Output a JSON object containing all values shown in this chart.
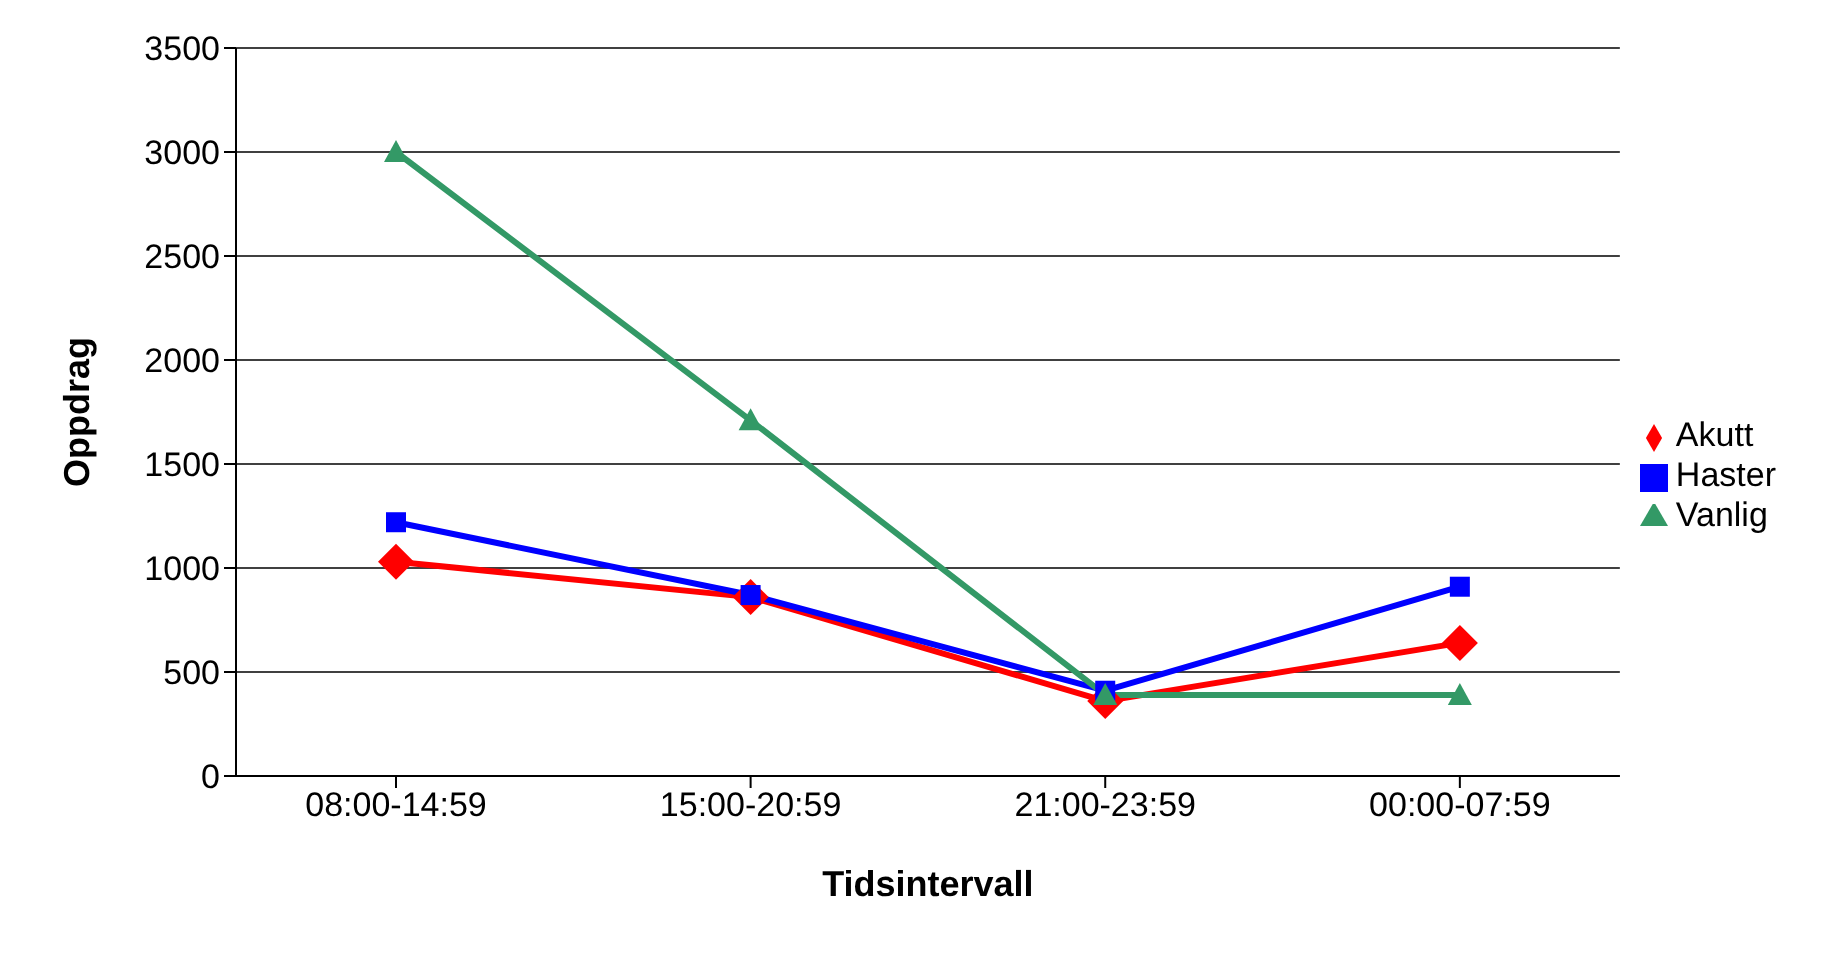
{
  "chart_data": {
    "type": "line",
    "xlabel": "Tidsintervall",
    "ylabel": "Oppdrag",
    "categories": [
      "08:00-14:59",
      "15:00-20:59",
      "21:00-23:59",
      "00:00-07:59"
    ],
    "series": [
      {
        "name": "Akutt",
        "color": "#ff0000",
        "marker": "diamond",
        "values": [
          1030,
          860,
          360,
          640
        ]
      },
      {
        "name": "Haster",
        "color": "#0000ff",
        "marker": "square",
        "values": [
          1220,
          870,
          410,
          910
        ]
      },
      {
        "name": "Vanlig",
        "color": "#339966",
        "marker": "triangle",
        "values": [
          3000,
          1710,
          390,
          390
        ]
      }
    ],
    "ylim": [
      0,
      3500
    ],
    "yticks": [
      0,
      500,
      1000,
      1500,
      2000,
      2500,
      3000,
      3500
    ],
    "grid": "y",
    "legend": "right"
  }
}
